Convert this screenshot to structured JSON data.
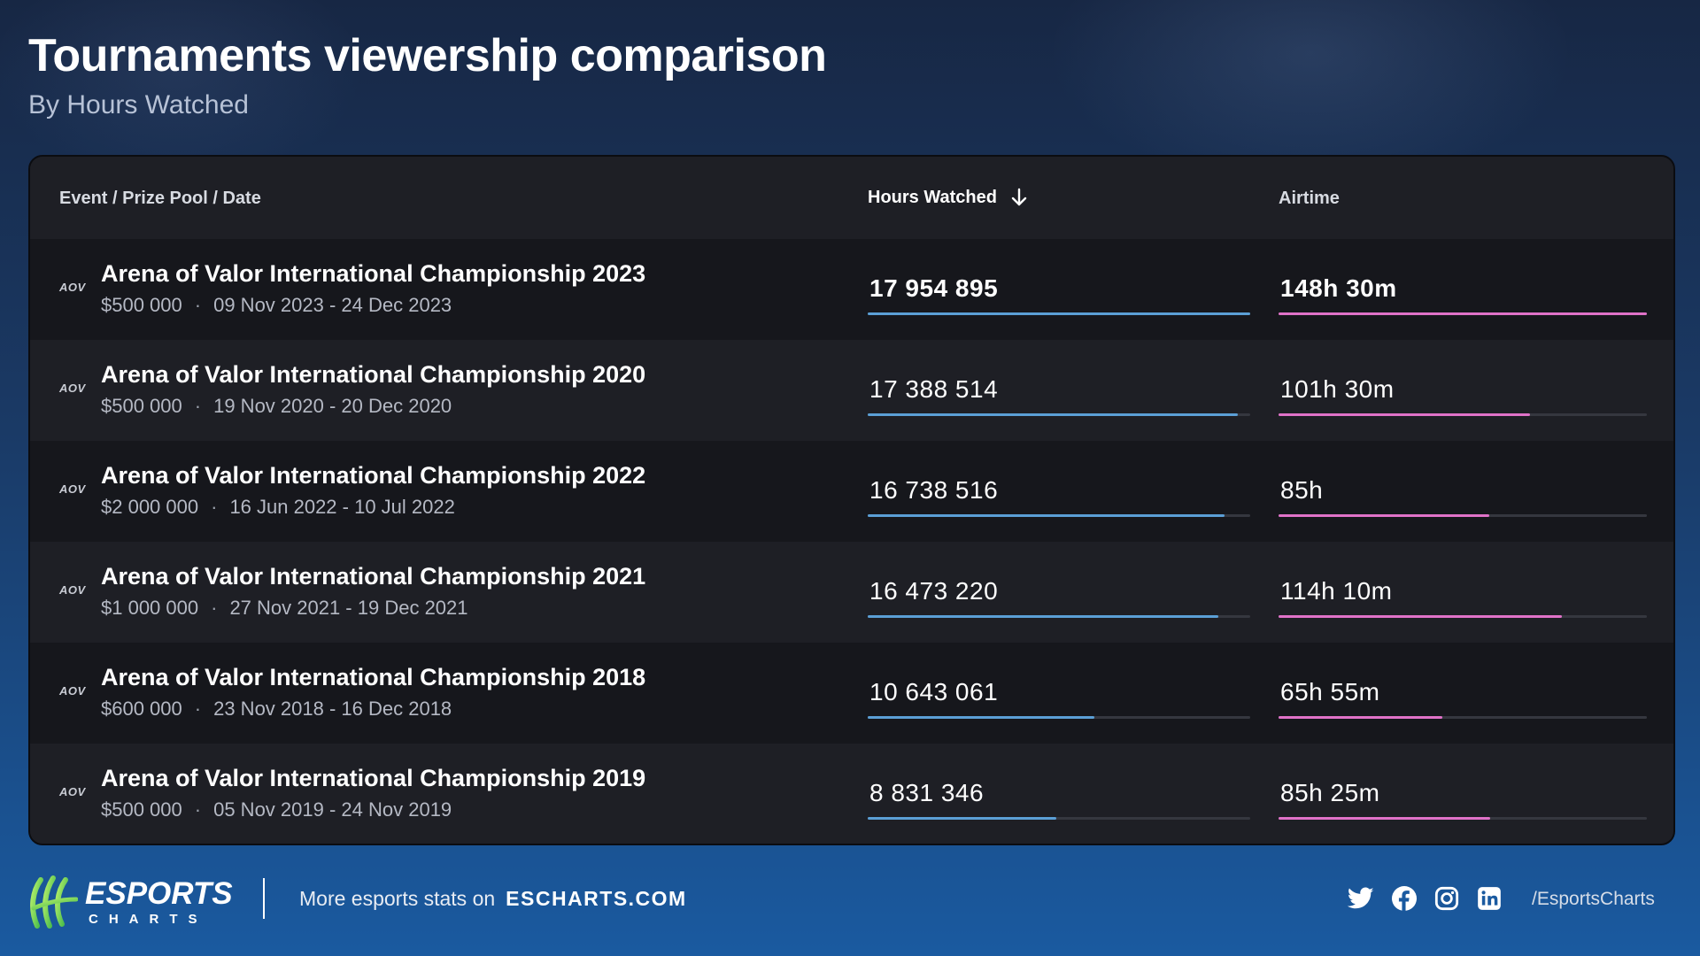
{
  "header": {
    "title": "Tournaments viewership comparison",
    "subtitle": "By Hours Watched"
  },
  "table": {
    "columns": {
      "event": "Event / Prize Pool / Date",
      "hours": "Hours Watched",
      "airtime": "Airtime"
    },
    "sort_icon": "arrow-down-icon",
    "logo_text": "AOV",
    "rows": [
      {
        "name": "Arena of Valor International Championship 2023",
        "prize": "$500 000",
        "dates": "09 Nov 2023 - 24 Dec 2023",
        "hours": "17 954 895",
        "airtime": "148h 30m",
        "hours_fraction": 1.0,
        "airtime_fraction": 1.0
      },
      {
        "name": "Arena of Valor International Championship 2020",
        "prize": "$500 000",
        "dates": "19 Nov 2020 - 20 Dec 2020",
        "hours": "17 388 514",
        "airtime": "101h 30m",
        "hours_fraction": 0.968,
        "airtime_fraction": 0.683
      },
      {
        "name": "Arena of Valor International Championship 2022",
        "prize": "$2 000 000",
        "dates": "16 Jun 2022 - 10 Jul 2022",
        "hours": "16 738 516",
        "airtime": "85h",
        "hours_fraction": 0.932,
        "airtime_fraction": 0.572
      },
      {
        "name": "Arena of Valor International Championship 2021",
        "prize": "$1 000 000",
        "dates": "27 Nov 2021 - 19 Dec 2021",
        "hours": "16 473 220",
        "airtime": "114h 10m",
        "hours_fraction": 0.917,
        "airtime_fraction": 0.769
      },
      {
        "name": "Arena of Valor International Championship 2018",
        "prize": "$600 000",
        "dates": "23 Nov 2018 - 16 Dec 2018",
        "hours": "10 643 061",
        "airtime": "65h 55m",
        "hours_fraction": 0.593,
        "airtime_fraction": 0.444
      },
      {
        "name": "Arena of Valor International Championship 2019",
        "prize": "$500 000",
        "dates": "05 Nov 2019 - 24 Nov 2019",
        "hours": "8 831 346",
        "airtime": "85h 25m",
        "hours_fraction": 0.492,
        "airtime_fraction": 0.575
      }
    ]
  },
  "footer": {
    "brand_name": "ESPORTS",
    "brand_sub": "CHARTS",
    "promo_text": "More esports stats on",
    "promo_site": "ESCHARTS.COM",
    "socials": [
      "twitter-icon",
      "facebook-icon",
      "instagram-icon",
      "linkedin-icon"
    ],
    "handle": "/EsportsCharts"
  },
  "colors": {
    "hours_bar": "#5b9fd6",
    "airtime_bar": "#e072c8",
    "card_bg": "#1b1c21",
    "brand_green": "#6bd64a"
  }
}
